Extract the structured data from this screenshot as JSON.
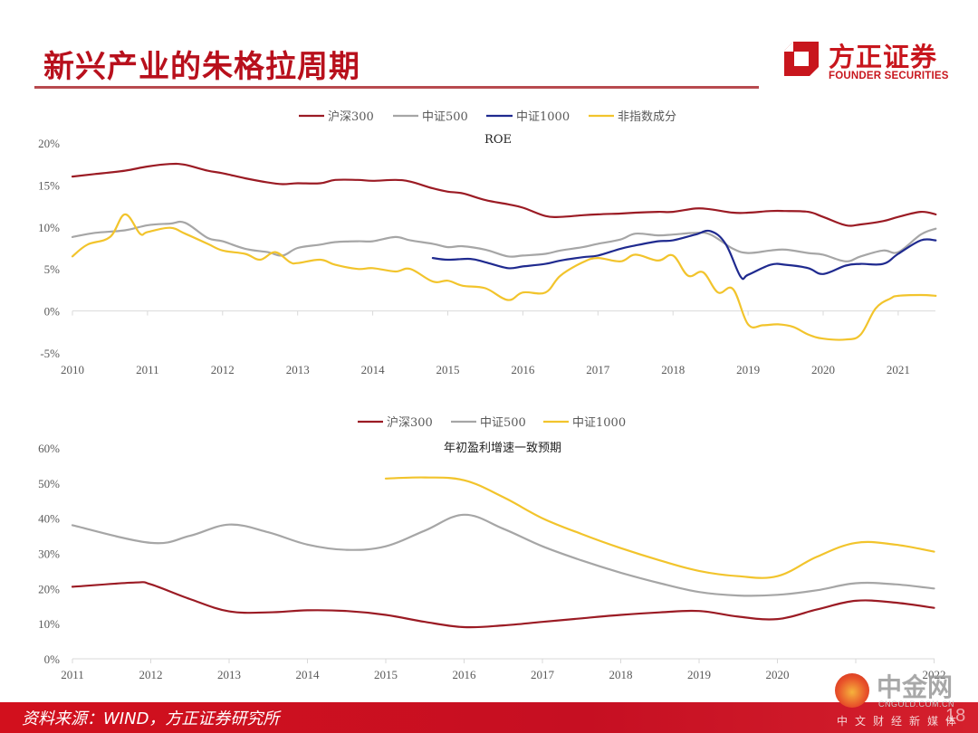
{
  "header": {
    "title": "新兴产业的朱格拉周期"
  },
  "logo": {
    "name_cn": "方正证券",
    "name_en": "FOUNDER SECURITIES",
    "icon": "founder-logo-icon"
  },
  "footer": {
    "source": "资料来源：WIND，方正证券研究所",
    "page_number": "18"
  },
  "watermark": {
    "name": "中金网",
    "url": "CNGOLD.COM.CN",
    "tagline": "中文财经新媒体"
  },
  "colors": {
    "brand_red": "#c8161d",
    "hs300": "#9b1b24",
    "zz500": "#a6a6a6",
    "zz1000_roe": "#1f2a8f",
    "non_index": "#f2c42c",
    "zz1000_growth": "#f2c42c"
  },
  "chart_data": [
    {
      "type": "line",
      "title": "ROE",
      "xlabel": "",
      "ylabel": "",
      "x_ticks": [
        "2010",
        "2011",
        "2012",
        "2013",
        "2014",
        "2015",
        "2016",
        "2017",
        "2018",
        "2019",
        "2020",
        "2021"
      ],
      "y_ticks": [
        "20%",
        "15%",
        "10%",
        "5%",
        "0%",
        "-5%"
      ],
      "ylim": [
        -5,
        20
      ],
      "xlim": [
        2010,
        2021.5
      ],
      "grid": false,
      "legend_position": "top-center",
      "series": [
        {
          "name": "沪深300",
          "color": "#9b1b24",
          "x": [
            2010.0,
            2010.3,
            2010.7,
            2011.0,
            2011.3,
            2011.5,
            2011.8,
            2012.0,
            2012.3,
            2012.6,
            2012.8,
            2013.0,
            2013.3,
            2013.5,
            2013.8,
            2014.0,
            2014.3,
            2014.5,
            2014.8,
            2015.0,
            2015.2,
            2015.5,
            2015.8,
            2016.0,
            2016.3,
            2016.5,
            2016.8,
            2017.0,
            2017.3,
            2017.5,
            2017.8,
            2018.0,
            2018.3,
            2018.5,
            2018.8,
            2019.0,
            2019.3,
            2019.5,
            2019.8,
            2020.0,
            2020.3,
            2020.5,
            2020.8,
            2021.0,
            2021.3,
            2021.5
          ],
          "values": [
            16.0,
            16.3,
            16.7,
            17.2,
            17.5,
            17.4,
            16.7,
            16.4,
            15.8,
            15.3,
            15.1,
            15.2,
            15.2,
            15.6,
            15.6,
            15.5,
            15.6,
            15.4,
            14.6,
            14.2,
            14.0,
            13.2,
            12.7,
            12.3,
            11.3,
            11.2,
            11.4,
            11.5,
            11.6,
            11.7,
            11.8,
            11.8,
            12.2,
            12.1,
            11.7,
            11.7,
            11.9,
            11.9,
            11.8,
            11.2,
            10.2,
            10.3,
            10.7,
            11.2,
            11.8,
            11.5
          ]
        },
        {
          "name": "中证500",
          "color": "#a6a6a6",
          "x": [
            2010.0,
            2010.3,
            2010.7,
            2011.0,
            2011.3,
            2011.5,
            2011.8,
            2012.0,
            2012.3,
            2012.6,
            2012.8,
            2013.0,
            2013.3,
            2013.5,
            2013.8,
            2014.0,
            2014.3,
            2014.5,
            2014.8,
            2015.0,
            2015.2,
            2015.5,
            2015.8,
            2016.0,
            2016.3,
            2016.5,
            2016.8,
            2017.0,
            2017.3,
            2017.5,
            2017.8,
            2018.0,
            2018.3,
            2018.5,
            2018.8,
            2019.0,
            2019.3,
            2019.5,
            2019.8,
            2020.0,
            2020.3,
            2020.5,
            2020.8,
            2021.0,
            2021.3,
            2021.5
          ],
          "values": [
            8.8,
            9.3,
            9.6,
            10.2,
            10.4,
            10.5,
            8.7,
            8.3,
            7.4,
            7.0,
            6.6,
            7.5,
            7.9,
            8.2,
            8.3,
            8.3,
            8.8,
            8.4,
            8.0,
            7.6,
            7.7,
            7.3,
            6.5,
            6.6,
            6.8,
            7.2,
            7.6,
            8.0,
            8.5,
            9.2,
            9.0,
            9.1,
            9.3,
            9.1,
            7.4,
            6.9,
            7.2,
            7.3,
            6.9,
            6.7,
            5.9,
            6.5,
            7.2,
            7.0,
            9.1,
            9.8
          ]
        },
        {
          "name": "中证1000",
          "color": "#1f2a8f",
          "x": [
            2014.8,
            2015.0,
            2015.3,
            2015.5,
            2015.8,
            2016.0,
            2016.3,
            2016.5,
            2016.8,
            2017.0,
            2017.3,
            2017.5,
            2017.8,
            2018.0,
            2018.3,
            2018.5,
            2018.7,
            2018.9,
            2019.0,
            2019.3,
            2019.5,
            2019.8,
            2020.0,
            2020.3,
            2020.5,
            2020.8,
            2021.0,
            2021.3,
            2021.5
          ],
          "values": [
            6.3,
            6.1,
            6.2,
            5.8,
            5.1,
            5.3,
            5.6,
            6.0,
            6.4,
            6.6,
            7.4,
            7.8,
            8.3,
            8.4,
            9.1,
            9.5,
            8.0,
            4.1,
            4.3,
            5.5,
            5.5,
            5.1,
            4.4,
            5.4,
            5.6,
            5.6,
            6.8,
            8.4,
            8.4
          ]
        },
        {
          "name": "非指数成分",
          "color": "#f2c42c",
          "x": [
            2010.0,
            2010.2,
            2010.5,
            2010.7,
            2010.9,
            2011.0,
            2011.3,
            2011.5,
            2011.8,
            2012.0,
            2012.3,
            2012.5,
            2012.7,
            2012.9,
            2013.0,
            2013.3,
            2013.5,
            2013.8,
            2014.0,
            2014.3,
            2014.5,
            2014.8,
            2015.0,
            2015.2,
            2015.5,
            2015.8,
            2016.0,
            2016.3,
            2016.5,
            2016.8,
            2017.0,
            2017.3,
            2017.5,
            2017.8,
            2018.0,
            2018.2,
            2018.4,
            2018.6,
            2018.8,
            2019.0,
            2019.2,
            2019.4,
            2019.6,
            2019.8,
            2020.0,
            2020.3,
            2020.5,
            2020.7,
            2020.9,
            2021.0,
            2021.3,
            2021.5
          ],
          "values": [
            6.5,
            7.9,
            8.8,
            11.5,
            9.2,
            9.4,
            9.9,
            9.2,
            8.0,
            7.2,
            6.8,
            6.1,
            7.0,
            5.8,
            5.7,
            6.1,
            5.5,
            5.0,
            5.1,
            4.7,
            5.0,
            3.5,
            3.6,
            3.0,
            2.7,
            1.3,
            2.2,
            2.2,
            4.2,
            5.8,
            6.3,
            5.9,
            6.7,
            6.0,
            6.6,
            4.2,
            4.6,
            2.2,
            2.6,
            -1.6,
            -1.7,
            -1.6,
            -1.9,
            -2.8,
            -3.3,
            -3.4,
            -2.8,
            0.3,
            1.5,
            1.8,
            1.9,
            1.8
          ]
        }
      ]
    },
    {
      "type": "line",
      "title": "年初盈利增速一致预期",
      "xlabel": "",
      "ylabel": "",
      "x_ticks": [
        "2011",
        "2012",
        "2013",
        "2014",
        "2015",
        "2016",
        "2017",
        "2018",
        "2019",
        "2020",
        "",
        "2022"
      ],
      "y_ticks": [
        "60%",
        "50%",
        "40%",
        "30%",
        "20%",
        "10%",
        "0%"
      ],
      "ylim": [
        0,
        60
      ],
      "xlim": [
        2011,
        2022
      ],
      "grid": false,
      "legend_position": "top-center",
      "series": [
        {
          "name": "沪深300",
          "color": "#9b1b24",
          "x": [
            2011,
            2011.8,
            2012,
            2012.5,
            2013,
            2013.5,
            2014,
            2014.5,
            2015,
            2015.5,
            2016,
            2016.5,
            2017,
            2017.5,
            2018,
            2018.5,
            2019,
            2019.5,
            2020,
            2020.5,
            2021,
            2021.5,
            2022
          ],
          "values": [
            20.5,
            21.7,
            21.2,
            17.0,
            13.5,
            13.2,
            13.8,
            13.6,
            12.5,
            10.5,
            9.0,
            9.5,
            10.5,
            11.5,
            12.5,
            13.2,
            13.6,
            12.0,
            11.3,
            14.0,
            16.5,
            16.0,
            14.5
          ]
        },
        {
          "name": "中证500",
          "color": "#a6a6a6",
          "x": [
            2011,
            2012,
            2012.5,
            2013,
            2013.5,
            2014,
            2014.5,
            2015,
            2015.5,
            2016,
            2016.5,
            2017,
            2017.5,
            2018,
            2018.5,
            2019,
            2019.5,
            2020,
            2020.5,
            2021,
            2021.5,
            2022
          ],
          "values": [
            38.0,
            33.0,
            35.0,
            38.2,
            36.0,
            32.5,
            31.0,
            32.0,
            36.5,
            41.0,
            37.0,
            32.0,
            28.0,
            24.5,
            21.5,
            19.0,
            18.0,
            18.2,
            19.5,
            21.5,
            21.2,
            20.0
          ]
        },
        {
          "name": "中证1000",
          "color": "#f2c42c",
          "x": [
            2015,
            2015.5,
            2016,
            2016.5,
            2017,
            2017.5,
            2018,
            2018.5,
            2019,
            2019.5,
            2020,
            2020.5,
            2021,
            2021.5,
            2022
          ],
          "values": [
            51.3,
            51.6,
            50.8,
            46.0,
            40.0,
            35.5,
            31.5,
            28.0,
            25.0,
            23.5,
            23.5,
            29.0,
            33.0,
            32.5,
            30.5
          ]
        }
      ]
    }
  ]
}
